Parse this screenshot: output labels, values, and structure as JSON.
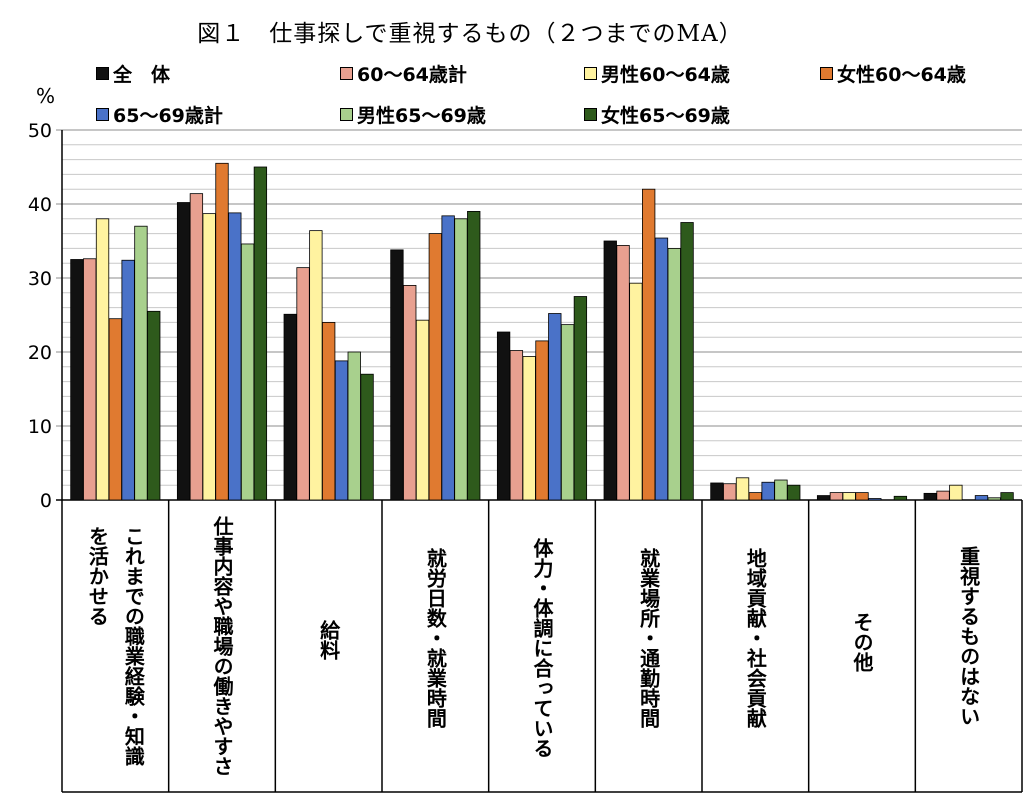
{
  "chart_data": {
    "type": "bar",
    "title": "図１　仕事探しで重視するもの（２つまでのMA）",
    "ylabel": "%",
    "ylim": [
      0,
      50
    ],
    "yticks": [
      0,
      10,
      20,
      30,
      40,
      50
    ],
    "grid": true,
    "legend_position": "top",
    "categories": [
      "これまでの職業経験・知識を活かせる",
      "仕事内容や職場の働きやすさ",
      "給料",
      "就労日数・就業時間",
      "体力・体調に合っている",
      "就業場所・通勤時間",
      "地域貢献・社会貢献",
      "その他",
      "重視するものはない"
    ],
    "category_lines": [
      [
        "これまでの職業経験・知識",
        "を活かせる"
      ],
      [
        "仕事内容や職場の働きやすさ"
      ],
      [
        "給料"
      ],
      [
        "就労日数・就業時間"
      ],
      [
        "体力・体調に合っている"
      ],
      [
        "就業場所・通勤時間"
      ],
      [
        "地域貢献・社会貢献"
      ],
      [
        "その他"
      ],
      [
        "重視するものはない"
      ]
    ],
    "series": [
      {
        "name": "全　体",
        "color": "#111111",
        "values": [
          32.5,
          40.2,
          25.1,
          33.8,
          22.7,
          35.0,
          2.3,
          0.6,
          0.9
        ]
      },
      {
        "name": "60～64歳計",
        "color": "#e8a090",
        "values": [
          32.6,
          41.4,
          31.4,
          29.0,
          20.2,
          34.4,
          2.2,
          1.0,
          1.2
        ]
      },
      {
        "name": "男性60～64歳",
        "color": "#fff3a0",
        "values": [
          38.0,
          38.7,
          36.4,
          24.3,
          19.4,
          29.3,
          3.0,
          1.0,
          2.0
        ]
      },
      {
        "name": "女性60～64歳",
        "color": "#e07a30",
        "values": [
          24.5,
          45.5,
          24.0,
          36.0,
          21.5,
          42.0,
          1.0,
          1.0,
          0.0
        ]
      },
      {
        "name": "65～69歳計",
        "color": "#4a72c8",
        "values": [
          32.4,
          38.8,
          18.8,
          38.4,
          25.2,
          35.4,
          2.4,
          0.2,
          0.6
        ]
      },
      {
        "name": "男性65～69歳",
        "color": "#a8d08d",
        "values": [
          37.0,
          34.6,
          20.0,
          38.0,
          23.7,
          34.0,
          2.7,
          0.0,
          0.3
        ]
      },
      {
        "name": "女性65～69歳",
        "color": "#2e5a1c",
        "values": [
          25.5,
          45.0,
          17.0,
          39.0,
          27.5,
          37.5,
          2.0,
          0.5,
          1.0
        ]
      }
    ]
  }
}
